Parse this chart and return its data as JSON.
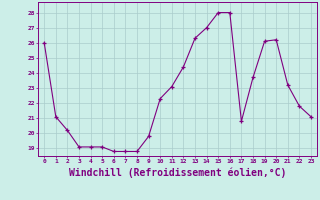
{
  "x": [
    0,
    1,
    2,
    3,
    4,
    5,
    6,
    7,
    8,
    9,
    10,
    11,
    12,
    13,
    14,
    15,
    16,
    17,
    18,
    19,
    20,
    21,
    22,
    23
  ],
  "y": [
    26,
    21.1,
    20.2,
    19.1,
    19.1,
    19.1,
    18.8,
    18.8,
    18.8,
    19.8,
    22.3,
    23.1,
    24.4,
    26.3,
    27.0,
    28.0,
    28.0,
    20.8,
    23.7,
    26.1,
    26.2,
    23.2,
    21.8,
    21.1
  ],
  "line_color": "#800080",
  "marker": "+",
  "marker_size": 3,
  "bg_color": "#cceee8",
  "grid_color": "#aacccc",
  "xlabel": "Windchill (Refroidissement éolien,°C)",
  "xlabel_fontsize": 7,
  "ylabel_ticks": [
    19,
    20,
    21,
    22,
    23,
    24,
    25,
    26,
    27,
    28
  ],
  "ylim": [
    18.5,
    28.7
  ],
  "xlim": [
    -0.5,
    23.5
  ],
  "xtick_labels": [
    "0",
    "1",
    "2",
    "3",
    "4",
    "5",
    "6",
    "7",
    "8",
    "9",
    "10",
    "11",
    "12",
    "13",
    "14",
    "15",
    "16",
    "17",
    "18",
    "19",
    "20",
    "21",
    "22",
    "23"
  ]
}
